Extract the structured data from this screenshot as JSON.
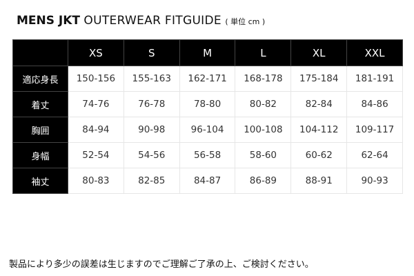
{
  "title": {
    "bold": "MENS JKT",
    "light": "OUTERWEAR FITGUIDE",
    "unit": "( 単位 cm )"
  },
  "sizes": [
    "XS",
    "S",
    "M",
    "L",
    "XL",
    "XXL"
  ],
  "rows": [
    {
      "label": "適応身長",
      "values": [
        "150-156",
        "155-163",
        "162-171",
        "168-178",
        "175-184",
        "181-191"
      ]
    },
    {
      "label": "着丈",
      "values": [
        "74-76",
        "76-78",
        "78-80",
        "80-82",
        "82-84",
        "84-86"
      ]
    },
    {
      "label": "胸囲",
      "values": [
        "84-94",
        "90-98",
        "96-104",
        "100-108",
        "104-112",
        "109-117"
      ]
    },
    {
      "label": "身幅",
      "values": [
        "52-54",
        "54-56",
        "56-58",
        "58-60",
        "60-62",
        "62-64"
      ]
    },
    {
      "label": "袖丈",
      "values": [
        "80-83",
        "82-85",
        "84-87",
        "86-89",
        "88-91",
        "90-93"
      ]
    }
  ],
  "note": "製品により多少の誤差は生じますのでご理解ご了承の上、ご検討ください。"
}
